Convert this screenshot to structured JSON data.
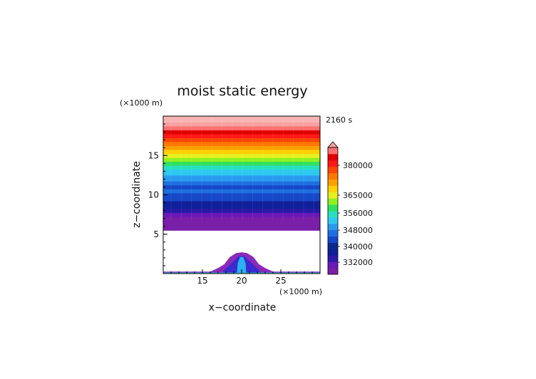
{
  "chart_data": {
    "type": "contour",
    "title": "moist static energy",
    "xlabel": "x−coordinate",
    "ylabel": "z−coordinate",
    "x_unit": "(×1000 m)",
    "y_unit": "(×1000 m)",
    "time_label": "2160 s",
    "xlim": [
      10,
      30
    ],
    "ylim": [
      0,
      20
    ],
    "x_ticks": [
      15,
      20,
      25
    ],
    "y_ticks": [
      5,
      10,
      15
    ],
    "level_boundary_km": [
      0,
      0.25,
      0.5,
      0.75,
      1,
      1.25,
      1.5,
      1.75,
      2,
      2.25,
      2.5,
      2.75,
      3,
      3.25,
      3.5,
      3.75,
      4,
      4.25,
      4.5,
      4.75,
      5,
      5.25,
      5.5,
      6.75,
      7,
      7.25,
      7.5,
      7.75,
      8,
      8.25,
      8.5,
      8.75,
      9,
      9.25,
      9.5,
      9.75,
      10,
      10.25,
      10.5,
      10.75,
      11,
      11.25,
      11.5,
      11.75,
      12,
      12.25,
      12.5,
      12.75,
      13,
      13.25,
      13.5,
      13.75,
      14,
      14.25,
      14.5,
      14.75,
      15,
      15.25,
      15.5,
      15.75,
      16,
      16.25,
      16.5,
      16.75,
      17,
      17.25,
      17.5,
      17.75,
      18,
      18.25,
      18.5,
      18.75,
      19,
      19.25,
      20
    ],
    "colorbar": {
      "tick_labels": [
        "380000",
        "365000",
        "356000",
        "348000",
        "340000",
        "332000"
      ],
      "colors": [
        "#7a1fa8",
        "#6a18b8",
        "#2a1aa8",
        "#10209a",
        "#0a2a8c",
        "#1648c8",
        "#1f6fe0",
        "#2a9af0",
        "#2ec8f0",
        "#28e0c0",
        "#30e060",
        "#90f020",
        "#e8f020",
        "#ffd000",
        "#ffa000",
        "#ff7800",
        "#ff4800",
        "#ff1818",
        "#e00000",
        "#ff7070",
        "#f8a0a0"
      ]
    },
    "cloud": {
      "outer": [
        [
          10,
          0
        ],
        [
          10,
          0.25
        ],
        [
          16,
          0.25
        ],
        [
          17,
          0.7
        ],
        [
          17.8,
          1.2
        ],
        [
          18.5,
          2.1
        ],
        [
          19.3,
          2.6
        ],
        [
          20,
          2.7
        ],
        [
          20.7,
          2.6
        ],
        [
          21.5,
          2.1
        ],
        [
          22.2,
          1.2
        ],
        [
          23,
          0.7
        ],
        [
          24,
          0.25
        ],
        [
          30,
          0.25
        ],
        [
          30,
          0
        ]
      ],
      "inner": [
        [
          17.5,
          0
        ],
        [
          17.8,
          0.5
        ],
        [
          18.5,
          1.1
        ],
        [
          19.2,
          1.8
        ],
        [
          19.6,
          2.2
        ],
        [
          20,
          2.25
        ],
        [
          20.4,
          2.2
        ],
        [
          20.8,
          1.8
        ],
        [
          21.5,
          1.1
        ],
        [
          22.2,
          0.5
        ],
        [
          22.5,
          0
        ]
      ],
      "core": [
        [
          19.4,
          0
        ],
        [
          19.5,
          1.3
        ],
        [
          19.8,
          2.1
        ],
        [
          20.2,
          2.1
        ],
        [
          20.5,
          1.3
        ],
        [
          20.6,
          0
        ]
      ],
      "surface": [
        [
          10,
          0
        ],
        [
          10,
          0.12
        ],
        [
          30,
          0.12
        ],
        [
          30,
          0
        ]
      ]
    }
  }
}
